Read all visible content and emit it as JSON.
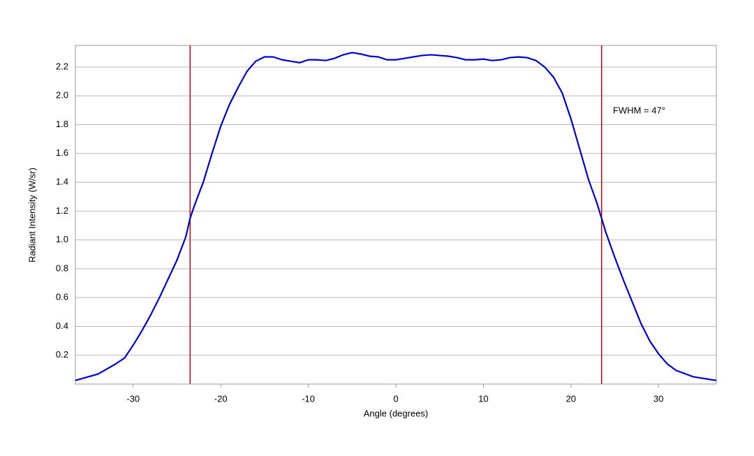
{
  "chart_data": {
    "type": "line",
    "x_label": "Angle (degrees)",
    "y_label": "Radiant Intensity (W/sr)",
    "annotation": "FWHM = 47°",
    "x": [
      -36.6,
      -34,
      -32,
      -31,
      -30,
      -29,
      -28,
      -27,
      -26,
      -25,
      -24,
      -23.5,
      -23,
      -22,
      -21,
      -20,
      -19,
      -18,
      -17,
      -16,
      -15,
      -14,
      -13,
      -12,
      -11,
      -10,
      -9,
      -8,
      -7,
      -6,
      -5,
      -4,
      -3,
      -2,
      -1,
      0,
      1,
      2,
      3,
      4,
      5,
      6,
      7,
      8,
      9,
      10,
      11,
      12,
      13,
      14,
      15,
      16,
      17,
      18,
      19,
      20,
      21,
      22,
      23,
      23.5,
      24,
      25,
      26,
      27,
      28,
      29,
      30,
      31,
      32,
      34,
      36.6
    ],
    "series": [
      {
        "name": "Radiant Intensity",
        "color": "#0000cc",
        "values": [
          0.025,
          0.07,
          0.14,
          0.18,
          0.27,
          0.37,
          0.48,
          0.6,
          0.73,
          0.86,
          1.02,
          1.15,
          1.24,
          1.4,
          1.6,
          1.79,
          1.94,
          2.06,
          2.17,
          2.24,
          2.27,
          2.27,
          2.25,
          2.24,
          2.23,
          2.25,
          2.25,
          2.245,
          2.26,
          2.285,
          2.3,
          2.29,
          2.275,
          2.27,
          2.25,
          2.25,
          2.26,
          2.27,
          2.28,
          2.285,
          2.28,
          2.275,
          2.265,
          2.25,
          2.25,
          2.255,
          2.245,
          2.25,
          2.265,
          2.27,
          2.265,
          2.245,
          2.2,
          2.13,
          2.02,
          1.84,
          1.63,
          1.42,
          1.25,
          1.15,
          1.05,
          0.88,
          0.72,
          0.57,
          0.42,
          0.3,
          0.21,
          0.14,
          0.095,
          0.05,
          0.025
        ]
      }
    ],
    "markers": [
      {
        "x": -23.5,
        "color": "#dd0000"
      },
      {
        "x": 23.5,
        "color": "#dd0000"
      }
    ],
    "xlim": [
      -36.6,
      36.6
    ],
    "ylim": [
      0,
      2.35
    ],
    "xticks": [
      -30,
      -20,
      -10,
      0,
      10,
      20,
      30
    ],
    "yticks": [
      0.2,
      0.4,
      0.6,
      0.8,
      {
        "value": 1,
        "label": "1.0"
      },
      1.2,
      1.4,
      1.6,
      1.8,
      {
        "value": 2,
        "label": "2.0"
      },
      2.2
    ],
    "grid": true
  }
}
